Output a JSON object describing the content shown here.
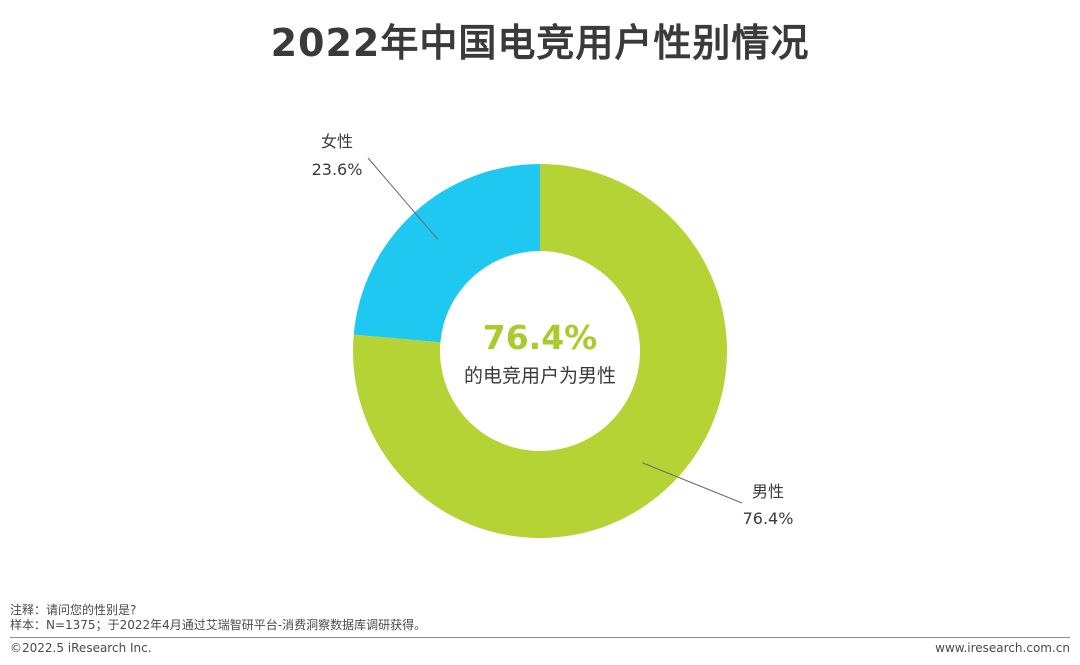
{
  "title": "2022年中国电竞用户性别情况",
  "chart_data": {
    "type": "pie",
    "variant": "donut",
    "slices": [
      {
        "name": "男性",
        "value": 76.4,
        "label": "76.4%",
        "color": "#b5d334"
      },
      {
        "name": "女性",
        "value": 23.6,
        "label": "23.6%",
        "color": "#1ec8f0"
      }
    ],
    "center_value": "76.4%",
    "center_caption": "的电竞用户为男性",
    "center_value_color": "#a8cc2c",
    "legend": "none"
  },
  "footer": {
    "note": "注释：请问您的性别是?",
    "sample": "样本：N=1375；于2022年4月通过艾瑞智研平台-消费洞察数据库调研获得。",
    "copyright": "©2022.5 iResearch Inc.",
    "website": "www.iresearch.com.cn"
  }
}
